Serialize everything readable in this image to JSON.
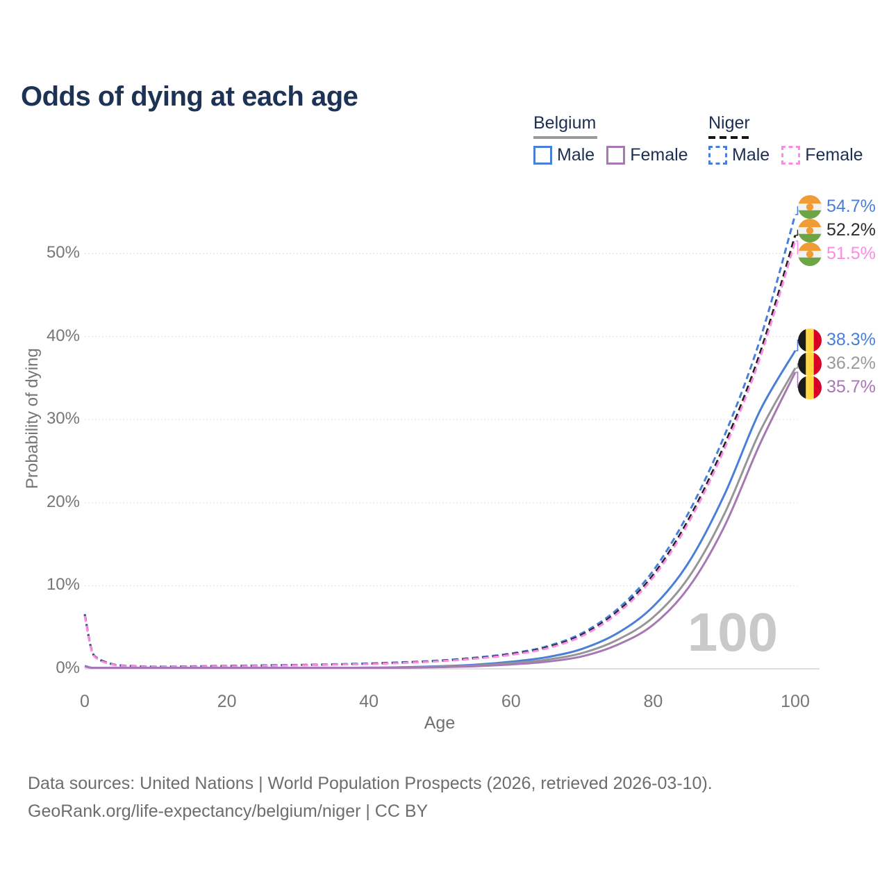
{
  "title": "Odds of dying at each age",
  "legend": {
    "groups": [
      {
        "key": "belgium",
        "label": "Belgium",
        "line": {
          "color": "#9a9a9a",
          "dashed": false
        },
        "items": [
          {
            "key": "belgium-male",
            "label": "Male",
            "color": "#4a7fd6",
            "dashed": false
          },
          {
            "key": "belgium-female",
            "label": "Female",
            "color": "#a678b4",
            "dashed": false
          }
        ]
      },
      {
        "key": "niger",
        "label": "Niger",
        "line": {
          "color": "#161616",
          "dashed": true
        },
        "items": [
          {
            "key": "niger-male",
            "label": "Male",
            "color": "#4a7fd6",
            "dashed": true
          },
          {
            "key": "niger-female",
            "label": "Female",
            "color": "#fb8ce4",
            "dashed": true
          }
        ]
      }
    ]
  },
  "end_labels": [
    {
      "key": "niger-male",
      "flag": "niger",
      "text": "54.7%",
      "value": 54.7,
      "color": "#4a7fd6"
    },
    {
      "key": "niger-total",
      "flag": "niger",
      "text": "52.2%",
      "value": 52.2,
      "color": "#2d2d2d"
    },
    {
      "key": "niger-female",
      "flag": "niger",
      "text": "51.5%",
      "value": 51.5,
      "color": "#fb8ce4"
    },
    {
      "key": "belgium-male",
      "flag": "belgium",
      "text": "38.3%",
      "value": 38.3,
      "color": "#4a7fd6"
    },
    {
      "key": "belgium-total",
      "flag": "belgium",
      "text": "36.2%",
      "value": 36.2,
      "color": "#9a9a9a"
    },
    {
      "key": "belgium-female",
      "flag": "belgium",
      "text": "35.7%",
      "value": 35.7,
      "color": "#a678b4"
    }
  ],
  "watermark": "100",
  "footer": {
    "line1": "Data sources: United Nations | World Population Prospects (2026, retrieved 2026-03-10).",
    "line2": "GeoRank.org/life-expectancy/belgium/niger | CC BY"
  },
  "colors": {
    "title_text": "#1c3356",
    "legend_text": "#1c2f52",
    "axis_text": "#767676",
    "footer_text": "#6d6d6d",
    "watermark": "#c9c9c9",
    "gridline": "#e6e6e6",
    "baseline": "#dfdfdf",
    "belgium_male": "#4a7fd6",
    "belgium_total": "#969696",
    "belgium_female": "#a678b4",
    "niger_male": "#4a7fd6",
    "niger_total": "#1f1f1f",
    "niger_female": "#fb8ce4",
    "niger_flag": [
      "#F09C36",
      "#F2F2F2",
      "#6DA544"
    ],
    "belgium_flag": [
      "#1b1b1b",
      "#FFD844",
      "#D80027"
    ]
  },
  "chart_data": {
    "type": "line",
    "xlabel": "Age",
    "ylabel": "Probability of dying",
    "x_ticks": [
      "0",
      "20",
      "40",
      "60",
      "80",
      "100"
    ],
    "y_ticks": [
      "0%",
      "10%",
      "20%",
      "30%",
      "40%",
      "50%"
    ],
    "xlim": [
      0,
      100
    ],
    "ylim": [
      0,
      56
    ],
    "grid": true,
    "legend_position": "top-right",
    "age_watermark": 100,
    "series": [
      {
        "key": "niger-male",
        "name": "Niger Male",
        "country": "Niger",
        "sex": "male",
        "color": "#4a7fd6",
        "dashed": true,
        "end_value": 54.7,
        "points": [
          [
            0,
            6.6
          ],
          [
            1,
            2.2
          ],
          [
            2,
            1.2
          ],
          [
            3,
            0.8
          ],
          [
            4,
            0.55
          ],
          [
            5,
            0.42
          ],
          [
            8,
            0.3
          ],
          [
            10,
            0.27
          ],
          [
            15,
            0.3
          ],
          [
            20,
            0.36
          ],
          [
            25,
            0.42
          ],
          [
            30,
            0.48
          ],
          [
            35,
            0.55
          ],
          [
            40,
            0.65
          ],
          [
            45,
            0.8
          ],
          [
            50,
            1.0
          ],
          [
            55,
            1.35
          ],
          [
            60,
            1.85
          ],
          [
            65,
            2.7
          ],
          [
            70,
            4.3
          ],
          [
            75,
            7.2
          ],
          [
            80,
            11.8
          ],
          [
            85,
            18.8
          ],
          [
            90,
            28.0
          ],
          [
            95,
            39.5
          ],
          [
            100,
            54.7
          ]
        ]
      },
      {
        "key": "niger-total",
        "name": "Niger",
        "country": "Niger",
        "sex": "both",
        "color": "#1f1f1f",
        "dashed": true,
        "end_value": 52.2,
        "points": [
          [
            0,
            6.5
          ],
          [
            1,
            2.15
          ],
          [
            2,
            1.15
          ],
          [
            3,
            0.76
          ],
          [
            4,
            0.52
          ],
          [
            5,
            0.4
          ],
          [
            8,
            0.28
          ],
          [
            10,
            0.25
          ],
          [
            15,
            0.28
          ],
          [
            20,
            0.33
          ],
          [
            25,
            0.39
          ],
          [
            30,
            0.45
          ],
          [
            35,
            0.52
          ],
          [
            40,
            0.61
          ],
          [
            45,
            0.75
          ],
          [
            50,
            0.95
          ],
          [
            55,
            1.28
          ],
          [
            60,
            1.75
          ],
          [
            65,
            2.55
          ],
          [
            70,
            4.1
          ],
          [
            75,
            6.9
          ],
          [
            80,
            11.3
          ],
          [
            85,
            18.0
          ],
          [
            90,
            26.9
          ],
          [
            95,
            37.9
          ],
          [
            100,
            52.2
          ]
        ]
      },
      {
        "key": "niger-female",
        "name": "Niger Female",
        "country": "Niger",
        "sex": "female",
        "color": "#fb8ce4",
        "dashed": true,
        "end_value": 51.5,
        "points": [
          [
            0,
            6.4
          ],
          [
            1,
            2.1
          ],
          [
            2,
            1.1
          ],
          [
            3,
            0.72
          ],
          [
            4,
            0.5
          ],
          [
            5,
            0.38
          ],
          [
            8,
            0.27
          ],
          [
            10,
            0.24
          ],
          [
            15,
            0.26
          ],
          [
            20,
            0.31
          ],
          [
            25,
            0.37
          ],
          [
            30,
            0.43
          ],
          [
            35,
            0.5
          ],
          [
            40,
            0.58
          ],
          [
            45,
            0.72
          ],
          [
            50,
            0.92
          ],
          [
            55,
            1.23
          ],
          [
            60,
            1.68
          ],
          [
            65,
            2.45
          ],
          [
            70,
            3.95
          ],
          [
            75,
            6.7
          ],
          [
            80,
            11.0
          ],
          [
            85,
            17.6
          ],
          [
            90,
            26.4
          ],
          [
            95,
            37.3
          ],
          [
            100,
            51.5
          ]
        ]
      },
      {
        "key": "belgium-male",
        "name": "Belgium Male",
        "country": "Belgium",
        "sex": "male",
        "color": "#4a7fd6",
        "dashed": false,
        "end_value": 38.3,
        "points": [
          [
            0,
            0.35
          ],
          [
            1,
            0.03
          ],
          [
            2,
            0.02
          ],
          [
            5,
            0.015
          ],
          [
            10,
            0.015
          ],
          [
            15,
            0.03
          ],
          [
            20,
            0.06
          ],
          [
            25,
            0.07
          ],
          [
            30,
            0.08
          ],
          [
            35,
            0.1
          ],
          [
            40,
            0.14
          ],
          [
            45,
            0.2
          ],
          [
            50,
            0.32
          ],
          [
            55,
            0.5
          ],
          [
            60,
            0.85
          ],
          [
            65,
            1.4
          ],
          [
            70,
            2.4
          ],
          [
            75,
            4.3
          ],
          [
            80,
            7.5
          ],
          [
            85,
            12.8
          ],
          [
            90,
            20.9
          ],
          [
            95,
            31.0
          ],
          [
            100,
            38.3
          ]
        ]
      },
      {
        "key": "belgium-total",
        "name": "Belgium",
        "country": "Belgium",
        "sex": "both",
        "color": "#969696",
        "dashed": false,
        "end_value": 36.2,
        "points": [
          [
            0,
            0.3
          ],
          [
            1,
            0.025
          ],
          [
            2,
            0.018
          ],
          [
            5,
            0.012
          ],
          [
            10,
            0.012
          ],
          [
            15,
            0.025
          ],
          [
            20,
            0.045
          ],
          [
            25,
            0.055
          ],
          [
            30,
            0.065
          ],
          [
            35,
            0.085
          ],
          [
            40,
            0.11
          ],
          [
            45,
            0.16
          ],
          [
            50,
            0.26
          ],
          [
            55,
            0.4
          ],
          [
            60,
            0.68
          ],
          [
            65,
            1.1
          ],
          [
            70,
            1.9
          ],
          [
            75,
            3.5
          ],
          [
            80,
            6.2
          ],
          [
            85,
            11.0
          ],
          [
            90,
            18.6
          ],
          [
            95,
            28.5
          ],
          [
            100,
            36.2
          ]
        ]
      },
      {
        "key": "belgium-female",
        "name": "Belgium Female",
        "country": "Belgium",
        "sex": "female",
        "color": "#a678b4",
        "dashed": false,
        "end_value": 35.7,
        "points": [
          [
            0,
            0.28
          ],
          [
            1,
            0.02
          ],
          [
            2,
            0.015
          ],
          [
            5,
            0.01
          ],
          [
            10,
            0.01
          ],
          [
            15,
            0.02
          ],
          [
            20,
            0.03
          ],
          [
            25,
            0.04
          ],
          [
            30,
            0.05
          ],
          [
            35,
            0.065
          ],
          [
            40,
            0.09
          ],
          [
            45,
            0.13
          ],
          [
            50,
            0.21
          ],
          [
            55,
            0.32
          ],
          [
            60,
            0.53
          ],
          [
            65,
            0.85
          ],
          [
            70,
            1.5
          ],
          [
            75,
            2.9
          ],
          [
            80,
            5.3
          ],
          [
            85,
            9.8
          ],
          [
            90,
            17.1
          ],
          [
            95,
            27.0
          ],
          [
            100,
            35.7
          ]
        ]
      }
    ]
  }
}
